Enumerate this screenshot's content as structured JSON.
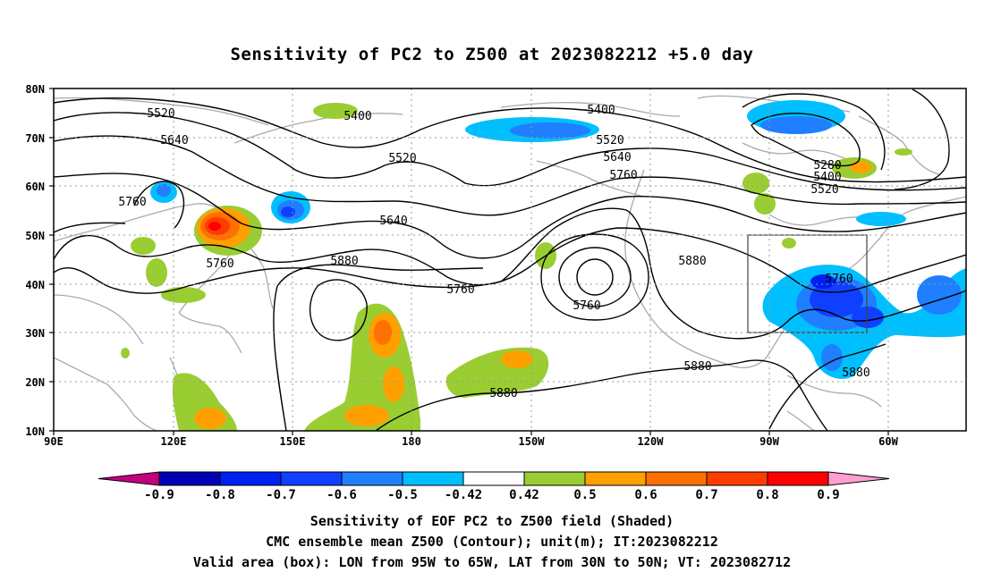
{
  "title": "Sensitivity of PC2 to Z500 at 2023082212 +5.0 day",
  "lat_labels": [
    "80N",
    "70N",
    "60N",
    "50N",
    "40N",
    "30N",
    "20N",
    "10N"
  ],
  "lon_labels": [
    "90E",
    "120E",
    "150E",
    "180",
    "150W",
    "120W",
    "90W",
    "60W"
  ],
  "contour_labels": [
    "5520",
    "5400",
    "5400",
    "5640",
    "5520",
    "5520",
    "5640",
    "5760",
    "5760",
    "5640",
    "5760",
    "5880",
    "5760",
    "5760",
    "5880",
    "5760",
    "5880",
    "5880",
    "5880",
    "5280",
    "5400",
    "5520"
  ],
  "colorbar": {
    "labels": [
      "-0.9",
      "-0.8",
      "-0.7",
      "-0.6",
      "-0.5",
      "-0.42",
      "0.42",
      "0.5",
      "0.6",
      "0.7",
      "0.8",
      "0.9"
    ],
    "colors": [
      "#c4007f",
      "#0000b4",
      "#0020f0",
      "#1040ff",
      "#1f7fff",
      "#00bfff",
      "#ffffff",
      "#9acd32",
      "#ffa000",
      "#ff7000",
      "#ff3c00",
      "#ff0000",
      "#ff9fcf"
    ]
  },
  "footer": {
    "line1": "Sensitivity of EOF PC2 to Z500 field (Shaded)",
    "line2": "CMC ensemble mean Z500 (Contour); unit(m); IT:2023082212",
    "line3": "Valid area (box): LON from 95W to 65W, LAT from 30N to 50N; VT: 2023082712"
  }
}
